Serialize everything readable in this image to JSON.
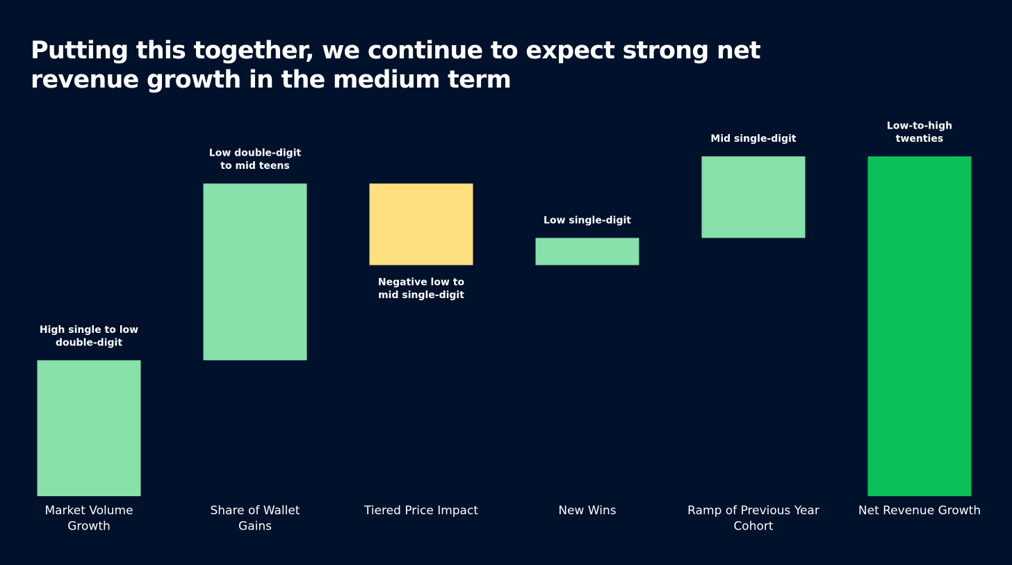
{
  "title": "Putting this together, we continue to expect strong net revenue growth in the medium term",
  "colors": {
    "background": "#00112b",
    "increase": "#88e0ab",
    "decrease": "#ffdf80",
    "total": "#0bc058",
    "text": "#ffffff"
  },
  "chart_data": {
    "type": "bar",
    "subtype": "waterfall",
    "categories": [
      [
        "Market Volume",
        "Growth"
      ],
      [
        "Share of Wallet",
        "Gains"
      ],
      [
        "Tiered Price Impact"
      ],
      [
        "New Wins"
      ],
      [
        "Ramp of Previous Year",
        "Cohort"
      ],
      [
        "Net Revenue Growth"
      ]
    ],
    "steps": [
      {
        "kind": "increase",
        "start": 0,
        "end": 10,
        "label": [
          "High single to low",
          "double-digit"
        ],
        "label_position": "above"
      },
      {
        "kind": "increase",
        "start": 10,
        "end": 23,
        "label": [
          "Low double-digit",
          "to mid teens"
        ],
        "label_position": "above"
      },
      {
        "kind": "decrease",
        "start": 23,
        "end": 17,
        "label": [
          "Negative low to",
          "mid single-digit"
        ],
        "label_position": "below"
      },
      {
        "kind": "increase",
        "start": 17,
        "end": 19,
        "label": [
          "Low single-digit"
        ],
        "label_position": "above"
      },
      {
        "kind": "increase",
        "start": 19,
        "end": 25,
        "label": [
          "Mid single-digit"
        ],
        "label_position": "above"
      },
      {
        "kind": "total",
        "start": 0,
        "end": 25,
        "label": [
          "Low-to-high",
          "twenties"
        ],
        "label_position": "above"
      }
    ],
    "ylim": [
      0,
      25
    ],
    "grid": false,
    "legend": "none"
  }
}
